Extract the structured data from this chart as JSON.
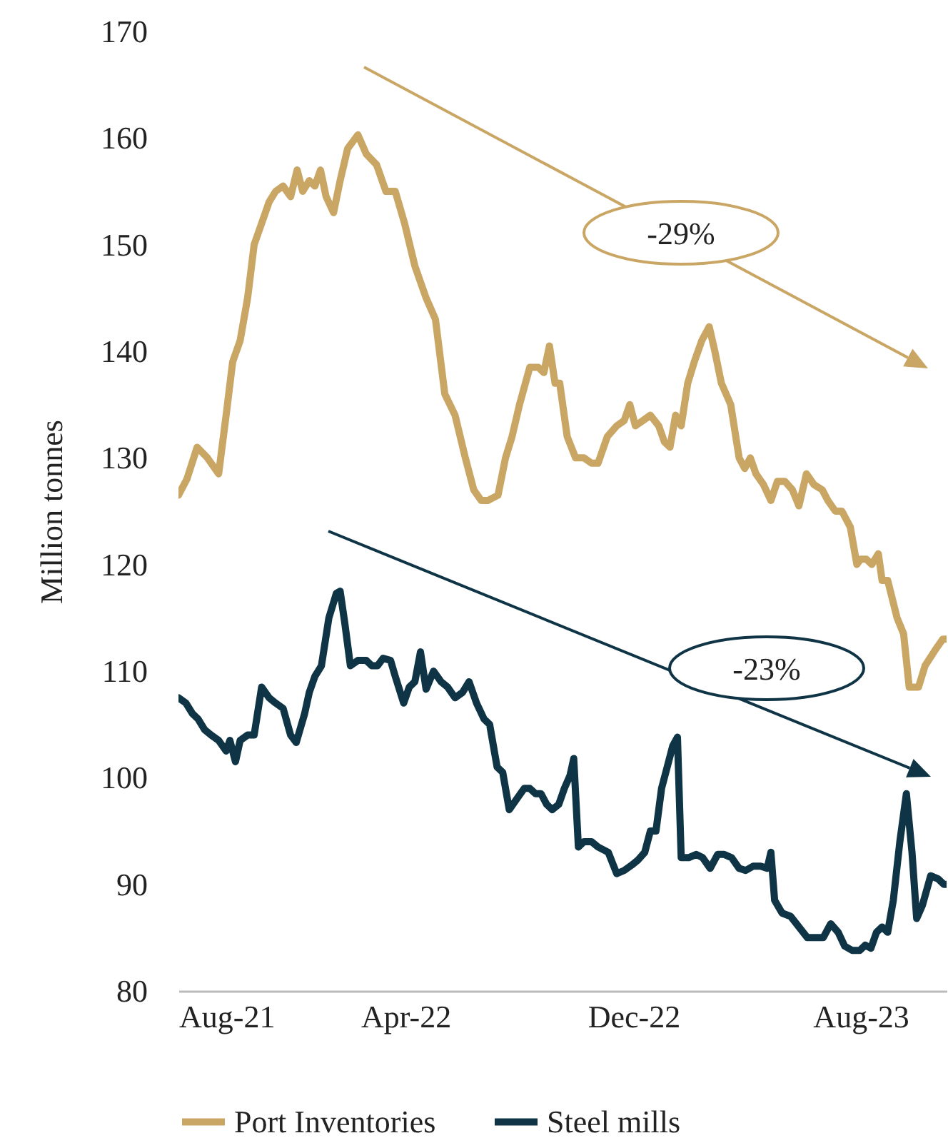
{
  "chart_data": {
    "type": "line",
    "ylabel": "Million tonnes",
    "legend": "bottom",
    "grid": false,
    "xlim": [
      "2021-08-01",
      "2023-11-01"
    ],
    "xticks": [
      {
        "value": "2021-08-01",
        "label": "Aug-21"
      },
      {
        "value": "2022-04-01",
        "label": "Apr-22"
      },
      {
        "value": "2022-12-01",
        "label": "Dec-22"
      },
      {
        "value": "2023-08-01",
        "label": "Aug-23"
      }
    ],
    "ylim": [
      80,
      170
    ],
    "yticks": [
      80,
      90,
      100,
      110,
      120,
      130,
      140,
      150,
      160,
      170
    ],
    "annotations": [
      "-29%",
      "-23%"
    ],
    "series": [
      {
        "name": "Port Inventories",
        "color": "#caa665",
        "x": [
          "2021-08-01",
          "2021-08-10",
          "2021-08-21",
          "2021-09-01",
          "2021-09-13",
          "2021-09-21",
          "2021-09-28",
          "2021-10-06",
          "2021-10-14",
          "2021-10-21",
          "2021-10-29",
          "2021-11-06",
          "2021-11-13",
          "2021-11-21",
          "2021-11-29",
          "2021-12-06",
          "2021-12-12",
          "2021-12-19",
          "2021-12-25",
          "2021-12-31",
          "2022-01-06",
          "2022-01-14",
          "2022-01-21",
          "2022-01-29",
          "2022-02-09",
          "2022-02-18",
          "2022-03-01",
          "2022-03-11",
          "2022-03-21",
          "2022-03-31",
          "2022-04-11",
          "2022-04-23",
          "2022-05-03",
          "2022-05-13",
          "2022-05-24",
          "2022-06-04",
          "2022-06-13",
          "2022-06-21",
          "2022-06-28",
          "2022-07-09",
          "2022-07-17",
          "2022-07-24",
          "2022-08-01",
          "2022-08-12",
          "2022-08-21",
          "2022-08-27",
          "2022-09-02",
          "2022-09-08",
          "2022-09-13",
          "2022-09-21",
          "2022-09-30",
          "2022-10-09",
          "2022-10-17",
          "2022-10-24",
          "2022-11-03",
          "2022-11-13",
          "2022-11-21",
          "2022-11-27",
          "2022-12-03",
          "2022-12-11",
          "2022-12-19",
          "2022-12-28",
          "2023-01-03",
          "2023-01-09",
          "2023-01-15",
          "2023-01-21",
          "2023-01-28",
          "2023-02-04",
          "2023-02-12",
          "2023-02-20",
          "2023-02-26",
          "2023-03-05",
          "2023-03-15",
          "2023-03-24",
          "2023-03-30",
          "2023-04-05",
          "2023-04-11",
          "2023-04-19",
          "2023-04-27",
          "2023-05-04",
          "2023-05-12",
          "2023-05-20",
          "2023-05-27",
          "2023-06-04",
          "2023-06-12",
          "2023-06-21",
          "2023-06-27",
          "2023-07-05",
          "2023-07-12",
          "2023-07-21",
          "2023-07-28",
          "2023-08-01",
          "2023-08-07",
          "2023-08-13",
          "2023-08-20",
          "2023-08-24",
          "2023-08-30",
          "2023-09-09",
          "2023-09-16",
          "2023-09-22",
          "2023-10-02",
          "2023-10-09",
          "2023-10-20",
          "2023-10-28",
          "2023-11-01"
        ],
        "values": [
          126.5,
          128,
          131,
          130,
          128.5,
          134,
          139,
          141,
          145,
          150,
          152,
          154,
          155,
          155.5,
          154.5,
          157,
          155,
          156,
          155.5,
          157,
          154.5,
          153,
          156,
          159,
          160.3,
          158.5,
          157.5,
          155,
          155,
          152,
          148,
          145,
          143,
          136,
          134,
          130,
          127,
          126,
          126,
          126.5,
          130,
          132,
          135,
          138.5,
          138.5,
          138,
          140.5,
          137,
          137,
          132,
          130,
          130,
          129.5,
          129.5,
          132,
          133,
          133.5,
          135,
          133,
          133.5,
          134,
          133,
          131.5,
          131,
          134,
          133,
          137,
          139,
          141,
          142.3,
          140,
          137,
          135,
          130,
          129,
          130,
          128.5,
          127.5,
          126,
          127.8,
          127.8,
          127,
          125.5,
          128.5,
          127.5,
          127,
          126,
          125,
          125,
          123.5,
          120,
          120.5,
          120.5,
          120,
          121,
          118.5,
          118.5,
          115,
          113.5,
          108.5,
          108.5,
          110.5,
          112,
          113,
          113
        ]
      },
      {
        "name": "Steel mills",
        "color": "#0e3446",
        "x": [
          "2021-08-01",
          "2021-08-09",
          "2021-08-16",
          "2021-08-22",
          "2021-08-29",
          "2021-09-05",
          "2021-09-13",
          "2021-09-21",
          "2021-09-25",
          "2021-10-01",
          "2021-10-06",
          "2021-10-14",
          "2021-10-21",
          "2021-10-29",
          "2021-11-06",
          "2021-11-13",
          "2021-11-21",
          "2021-11-29",
          "2021-12-05",
          "2021-12-14",
          "2021-12-19",
          "2021-12-25",
          "2022-01-01",
          "2022-01-09",
          "2022-01-17",
          "2022-01-21",
          "2022-01-26",
          "2022-02-01",
          "2022-02-09",
          "2022-02-18",
          "2022-02-24",
          "2022-03-02",
          "2022-03-08",
          "2022-03-16",
          "2022-03-21",
          "2022-03-30",
          "2022-04-05",
          "2022-04-11",
          "2022-04-17",
          "2022-04-23",
          "2022-05-01",
          "2022-05-09",
          "2022-05-16",
          "2022-05-24",
          "2022-06-01",
          "2022-06-08",
          "2022-06-16",
          "2022-06-24",
          "2022-06-30",
          "2022-07-08",
          "2022-07-14",
          "2022-07-21",
          "2022-07-29",
          "2022-08-06",
          "2022-08-12",
          "2022-08-18",
          "2022-08-24",
          "2022-08-30",
          "2022-09-05",
          "2022-09-12",
          "2022-09-18",
          "2022-09-24",
          "2022-09-28",
          "2022-10-03",
          "2022-10-09",
          "2022-10-17",
          "2022-10-24",
          "2022-11-04",
          "2022-11-13",
          "2022-11-21",
          "2022-11-29",
          "2022-12-06",
          "2022-12-13",
          "2022-12-19",
          "2022-12-25",
          "2022-12-31",
          "2023-01-06",
          "2023-01-12",
          "2023-01-17",
          "2023-01-21",
          "2023-01-29",
          "2023-02-06",
          "2023-02-13",
          "2023-02-21",
          "2023-03-01",
          "2023-03-08",
          "2023-03-16",
          "2023-03-24",
          "2023-03-31",
          "2023-04-08",
          "2023-04-16",
          "2023-04-23",
          "2023-04-27",
          "2023-05-01",
          "2023-05-09",
          "2023-05-18",
          "2023-05-27",
          "2023-06-05",
          "2023-06-15",
          "2023-06-22",
          "2023-06-30",
          "2023-07-08",
          "2023-07-15",
          "2023-07-23",
          "2023-07-31",
          "2023-08-06",
          "2023-08-12",
          "2023-08-18",
          "2023-08-24",
          "2023-08-30",
          "2023-09-05",
          "2023-09-12",
          "2023-09-19",
          "2023-09-25",
          "2023-09-30",
          "2023-10-06",
          "2023-10-15",
          "2023-10-23",
          "2023-10-29",
          "2023-11-01"
        ],
        "values": [
          107.5,
          107,
          106,
          105.5,
          104.5,
          104,
          103.5,
          102.5,
          103.5,
          101.5,
          103.5,
          104,
          104,
          108.5,
          107.5,
          107,
          106.5,
          104,
          103.3,
          106,
          108,
          109.5,
          110.5,
          115,
          117.3,
          117.5,
          114.5,
          110.5,
          111,
          111,
          110.5,
          110.5,
          111.2,
          111,
          109.5,
          107,
          108.5,
          109,
          111.8,
          108.3,
          110,
          109,
          108.5,
          107.5,
          108,
          109,
          107,
          105.5,
          105,
          101,
          100.5,
          97,
          98,
          99,
          99,
          98.5,
          98.5,
          97.5,
          97,
          97.5,
          99,
          100.2,
          101.8,
          93.5,
          94,
          94,
          93.5,
          93,
          91,
          91.3,
          91.8,
          92.3,
          93,
          95,
          95,
          99,
          101,
          103,
          103.8,
          92.5,
          92.5,
          92.8,
          92.5,
          91.5,
          92.8,
          92.8,
          92.5,
          91.5,
          91.3,
          91.7,
          91.7,
          91.5,
          93,
          88.5,
          87.3,
          87,
          86,
          85,
          85,
          85,
          86.3,
          85.5,
          84.2,
          83.8,
          83.8,
          84.3,
          84,
          85.5,
          86,
          85.5,
          88.5,
          94,
          98.5,
          93,
          86.8,
          88,
          90.8,
          90.5,
          90,
          90
        ]
      }
    ]
  }
}
